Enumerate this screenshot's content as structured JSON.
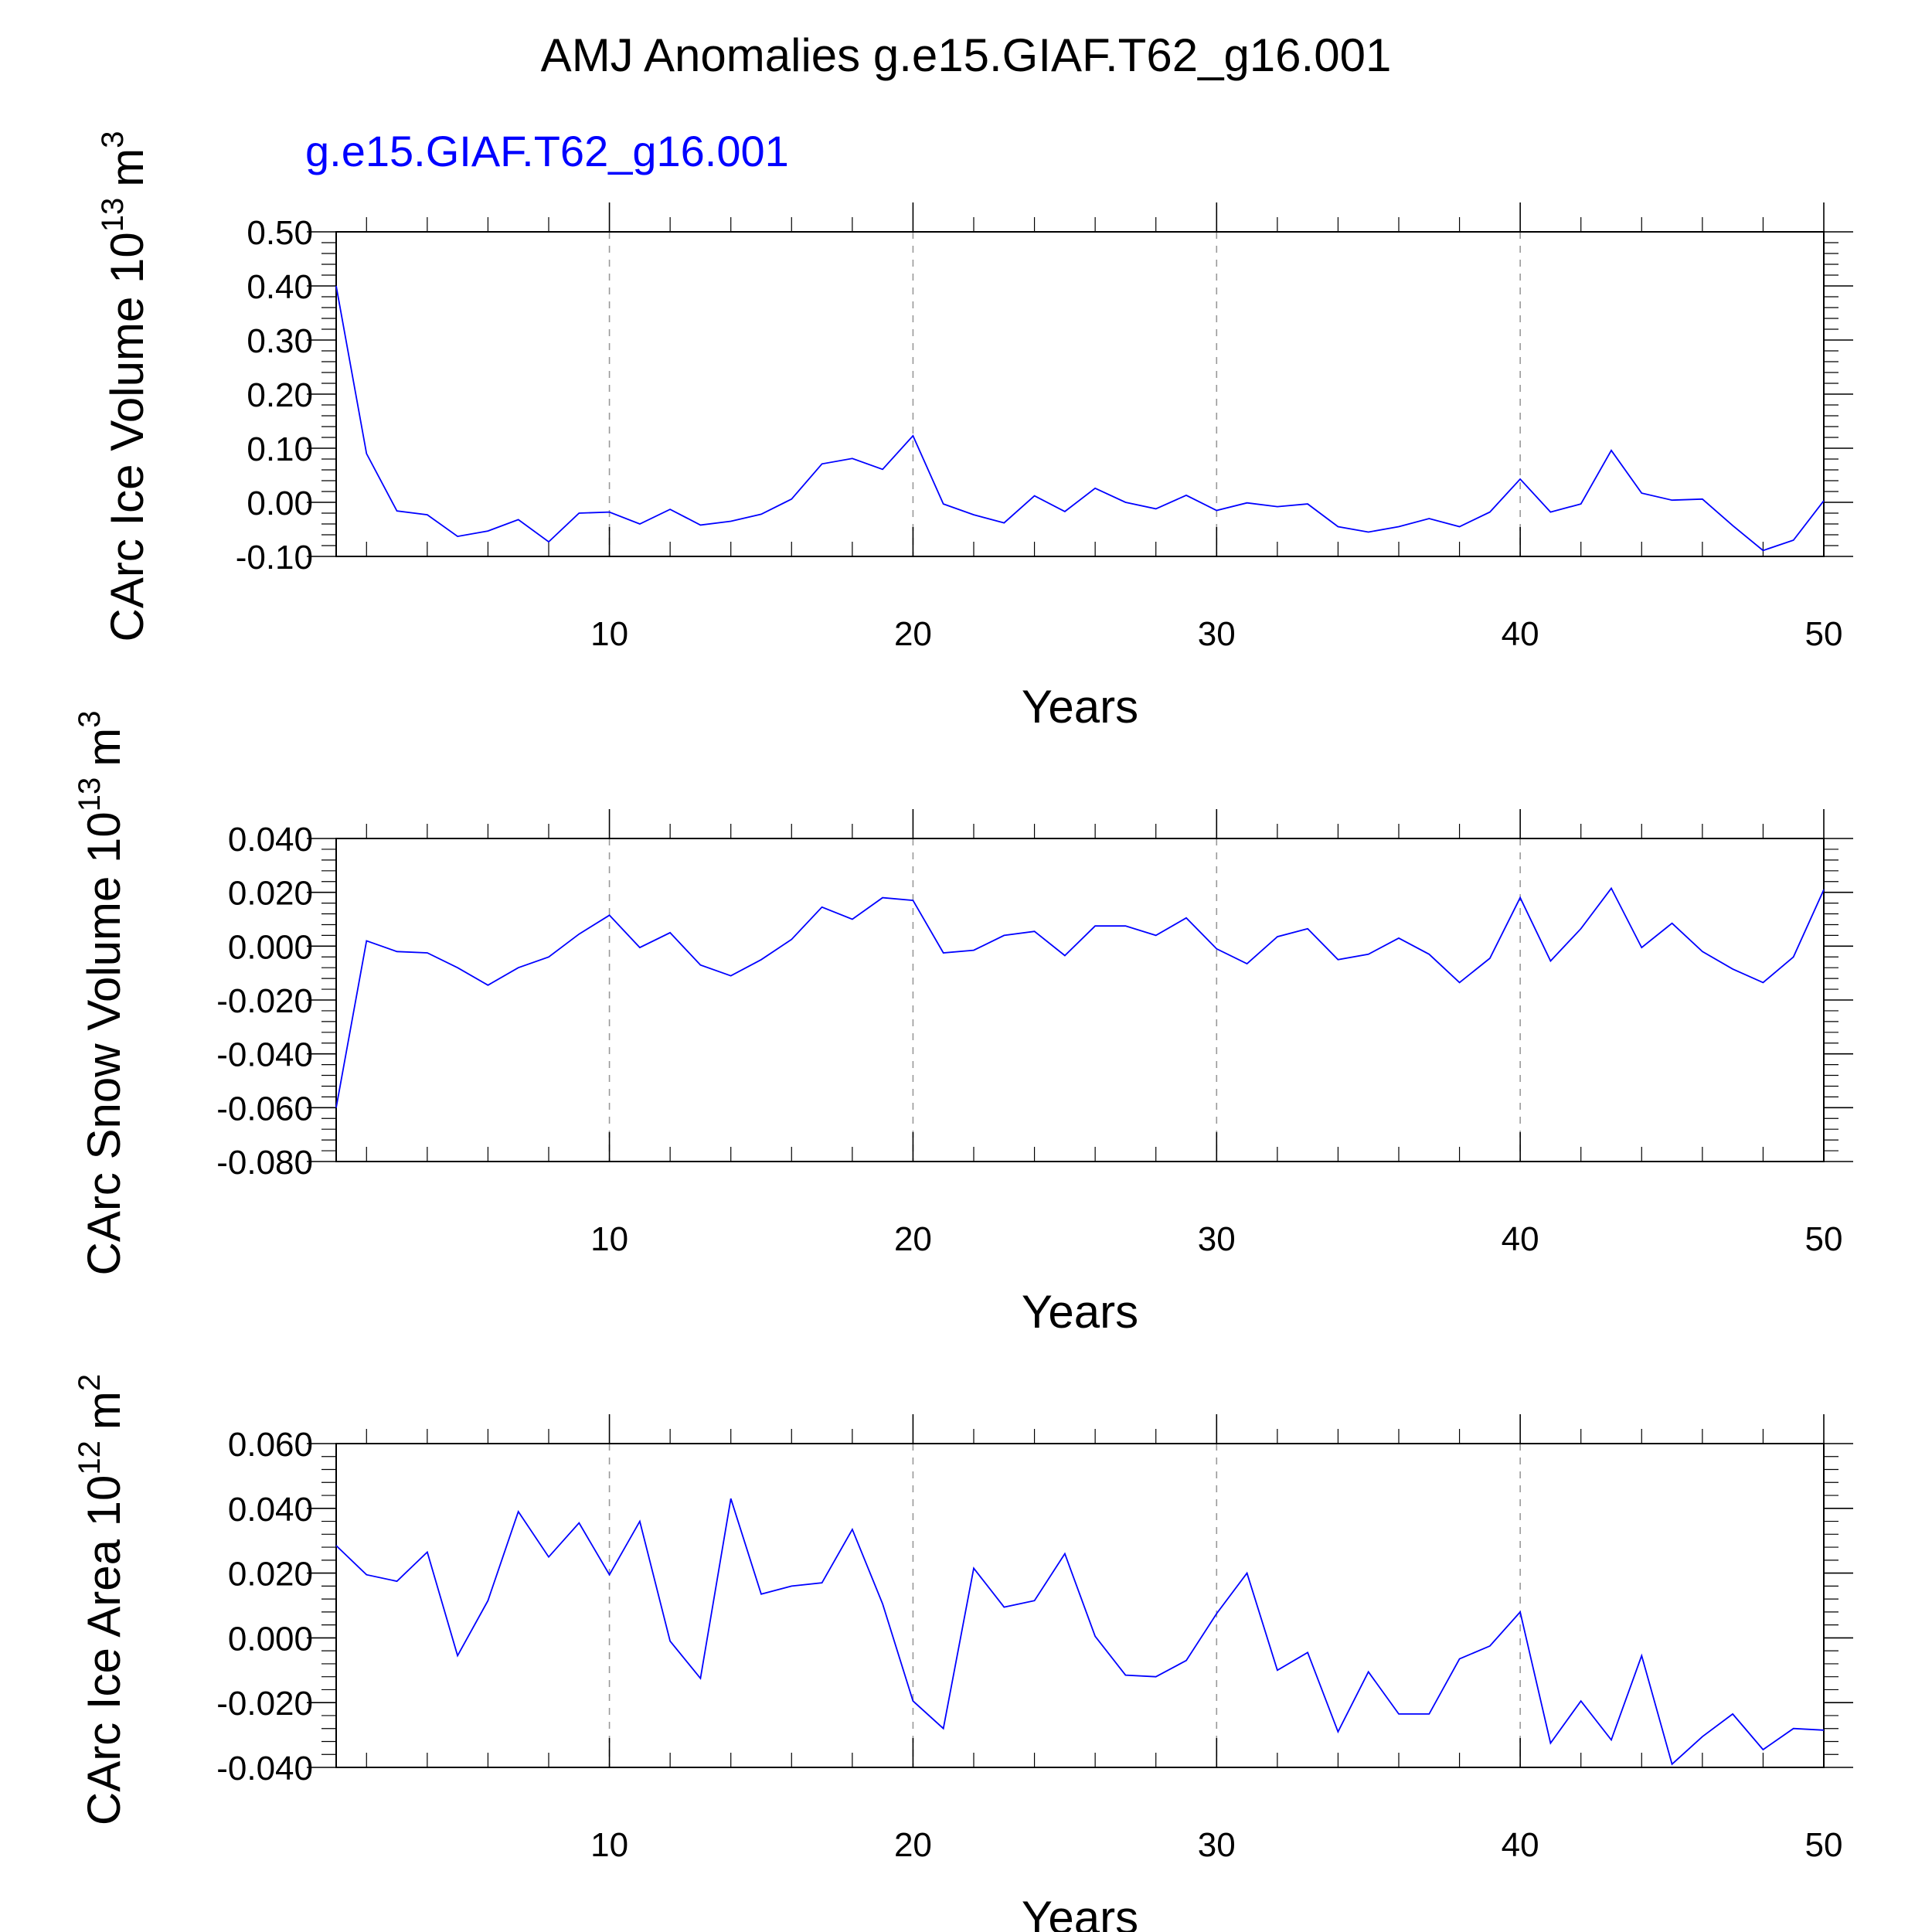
{
  "title": "AMJ Anomalies g.e15.GIAF.T62_g16.001",
  "subtitle": "g.e15.GIAF.T62_g16.001",
  "colors": {
    "series": "#0000ff",
    "grid": "#999999",
    "axis": "#000000",
    "subtitle": "#0000ff"
  },
  "chart_data": [
    {
      "type": "line",
      "name": "ice-volume",
      "title": "",
      "xlabel": "Years",
      "ylabel_main": "CArc Ice Volume 10",
      "ylabel_sup": "13",
      "ylabel_unit": "m",
      "ylabel_unit_sup": "3",
      "xlim": [
        1,
        50
      ],
      "ylim": [
        -0.1,
        0.5
      ],
      "xticks": [
        10,
        20,
        30,
        40,
        50
      ],
      "xtick_labels": [
        "10",
        "20",
        "30",
        "40",
        "50"
      ],
      "yticks": [
        -0.1,
        0,
        0.1,
        0.2,
        0.3,
        0.4,
        0.5
      ],
      "ytick_labels": [
        "-0.10",
        "0.00",
        "0.10",
        "0.20",
        "0.30",
        "0.40",
        "0.50"
      ],
      "grid_x": [
        10,
        20,
        30,
        40
      ],
      "series": [
        {
          "name": "g.e15.GIAF.T62_g16.001",
          "x": [
            1,
            2,
            3,
            4,
            5,
            6,
            7,
            8,
            9,
            10,
            11,
            12,
            13,
            14,
            15,
            16,
            17,
            18,
            19,
            20,
            21,
            22,
            23,
            24,
            25,
            26,
            27,
            28,
            29,
            30,
            31,
            32,
            33,
            34,
            35,
            36,
            37,
            38,
            39,
            40,
            41,
            42,
            43,
            44,
            45,
            46,
            47,
            48,
            49,
            50
          ],
          "y": [
            0.4,
            0.09,
            -0.016,
            -0.023,
            -0.063,
            -0.053,
            -0.032,
            -0.073,
            -0.02,
            -0.018,
            -0.04,
            -0.013,
            -0.042,
            -0.035,
            -0.022,
            0.006,
            0.071,
            0.081,
            0.061,
            0.123,
            -0.003,
            -0.023,
            -0.038,
            0.012,
            -0.017,
            0.026,
            0.0,
            -0.012,
            0.013,
            -0.015,
            -0.001,
            -0.008,
            -0.003,
            -0.045,
            -0.055,
            -0.045,
            -0.03,
            -0.045,
            -0.018,
            0.043,
            -0.018,
            -0.003,
            0.096,
            0.017,
            0.004,
            0.006,
            -0.043,
            -0.089,
            -0.07,
            0.003
          ]
        }
      ]
    },
    {
      "type": "line",
      "name": "snow-volume",
      "title": "",
      "xlabel": "Years",
      "ylabel_main": "CArc Snow Volume 10",
      "ylabel_sup": "13",
      "ylabel_unit": "m",
      "ylabel_unit_sup": "3",
      "xlim": [
        1,
        50
      ],
      "ylim": [
        -0.08,
        0.04
      ],
      "xticks": [
        10,
        20,
        30,
        40,
        50
      ],
      "xtick_labels": [
        "10",
        "20",
        "30",
        "40",
        "50"
      ],
      "yticks": [
        -0.08,
        -0.06,
        -0.04,
        -0.02,
        0,
        0.02,
        0.04
      ],
      "ytick_labels": [
        "-0.080",
        "-0.060",
        "-0.040",
        "-0.020",
        "0.000",
        "0.020",
        "0.040"
      ],
      "grid_x": [
        10,
        20,
        30,
        40
      ],
      "series": [
        {
          "name": "g.e15.GIAF.T62_g16.001",
          "x": [
            1,
            2,
            3,
            4,
            5,
            6,
            7,
            8,
            9,
            10,
            11,
            12,
            13,
            14,
            15,
            16,
            17,
            18,
            19,
            20,
            21,
            22,
            23,
            24,
            25,
            26,
            27,
            28,
            29,
            30,
            31,
            32,
            33,
            34,
            35,
            36,
            37,
            38,
            39,
            40,
            41,
            42,
            43,
            44,
            45,
            46,
            47,
            48,
            49,
            50
          ],
          "y": [
            -0.06,
            0.002,
            -0.002,
            -0.0025,
            -0.008,
            -0.0145,
            -0.008,
            -0.004,
            0.0045,
            0.0115,
            -0.0005,
            0.005,
            -0.007,
            -0.011,
            -0.005,
            0.0025,
            0.0145,
            0.01,
            0.018,
            0.017,
            -0.0025,
            -0.0015,
            0.004,
            0.0055,
            -0.0035,
            0.0075,
            0.0075,
            0.004,
            0.0105,
            -0.001,
            -0.0065,
            0.0035,
            0.0065,
            -0.005,
            -0.003,
            0.003,
            -0.003,
            -0.0135,
            -0.0045,
            0.018,
            -0.0055,
            0.0065,
            0.0215,
            -0.0005,
            0.0085,
            -0.002,
            -0.0085,
            -0.0135,
            -0.004,
            0.021
          ]
        }
      ]
    },
    {
      "type": "line",
      "name": "ice-area",
      "title": "",
      "xlabel": "Years",
      "ylabel_main": "CArc Ice Area 10",
      "ylabel_sup": "12",
      "ylabel_unit": "m",
      "ylabel_unit_sup": "2",
      "xlim": [
        1,
        50
      ],
      "ylim": [
        -0.04,
        0.06
      ],
      "xticks": [
        10,
        20,
        30,
        40,
        50
      ],
      "xtick_labels": [
        "10",
        "20",
        "30",
        "40",
        "50"
      ],
      "yticks": [
        -0.04,
        -0.02,
        0,
        0.02,
        0.04,
        0.06
      ],
      "ytick_labels": [
        "-0.040",
        "-0.020",
        "0.000",
        "0.020",
        "0.040",
        "0.060"
      ],
      "grid_x": [
        10,
        20,
        30,
        40
      ],
      "series": [
        {
          "name": "g.e15.GIAF.T62_g16.001",
          "x": [
            1,
            2,
            3,
            4,
            5,
            6,
            7,
            8,
            9,
            10,
            11,
            12,
            13,
            14,
            15,
            16,
            17,
            18,
            19,
            20,
            21,
            22,
            23,
            24,
            25,
            26,
            27,
            28,
            29,
            30,
            31,
            32,
            33,
            34,
            35,
            36,
            37,
            38,
            39,
            40,
            41,
            42,
            43,
            44,
            45,
            46,
            47,
            48,
            49,
            50
          ],
          "y": [
            0.0285,
            0.0195,
            0.0175,
            0.0265,
            -0.0055,
            0.0115,
            0.039,
            0.025,
            0.0355,
            0.0195,
            0.036,
            -0.001,
            -0.0125,
            0.043,
            0.0135,
            0.016,
            0.017,
            0.0335,
            0.0105,
            -0.0195,
            -0.028,
            0.0215,
            0.0095,
            0.0115,
            0.026,
            0.0005,
            -0.0115,
            -0.012,
            -0.007,
            0.0075,
            0.02,
            -0.01,
            -0.0045,
            -0.029,
            -0.0105,
            -0.0235,
            -0.0235,
            -0.0065,
            -0.0025,
            0.008,
            -0.0325,
            -0.0195,
            -0.0315,
            -0.0055,
            -0.039,
            -0.0305,
            -0.0235,
            -0.0345,
            -0.028,
            -0.0285
          ]
        }
      ]
    }
  ]
}
